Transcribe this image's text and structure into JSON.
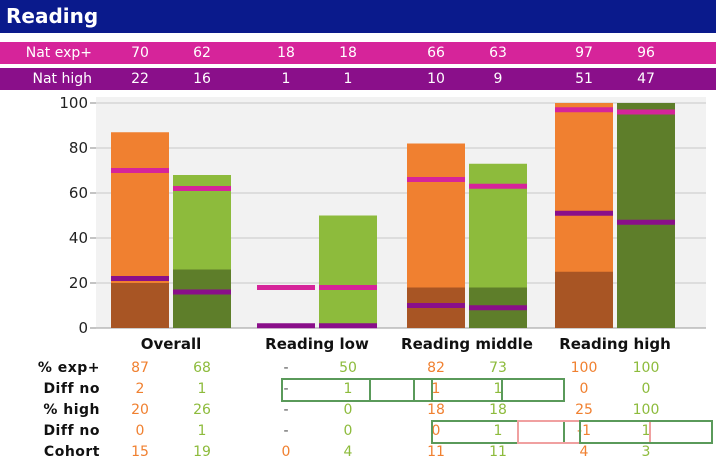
{
  "title": "Reading",
  "nat_exp": {
    "label": "Nat exp+",
    "values": [
      "70",
      "62",
      "18",
      "18",
      "66",
      "63",
      "97",
      "96"
    ]
  },
  "nat_high": {
    "label": "Nat high",
    "values": [
      "22",
      "16",
      "1",
      "1",
      "10",
      "9",
      "51",
      "47"
    ]
  },
  "colors": {
    "orange_light": "#f08030",
    "orange_dark": "#a85524",
    "green_light": "#8dbb3c",
    "green_dark": "#5e7e2a",
    "marker_exp": "#d6249a",
    "marker_high": "#8a0f8a"
  },
  "chart_data": {
    "type": "bar",
    "categories": [
      "Overall",
      "Reading low",
      "Reading middle",
      "Reading high"
    ],
    "ylim": [
      0,
      100
    ],
    "yticks": [
      0,
      20,
      40,
      60,
      80,
      100
    ],
    "grid": true,
    "series": [
      {
        "pct_exp": [
          87,
          null,
          82,
          100
        ],
        "pct_high": [
          20,
          null,
          18,
          25
        ],
        "nat_exp": [
          70,
          18,
          66,
          97
        ],
        "nat_high": [
          22,
          1,
          10,
          51
        ]
      },
      {
        "pct_exp": [
          68,
          50,
          73,
          100
        ],
        "pct_high": [
          26,
          0,
          18,
          100
        ],
        "nat_exp": [
          62,
          18,
          63,
          96
        ],
        "nat_high": [
          16,
          1,
          9,
          47
        ]
      }
    ]
  },
  "stats": [
    {
      "label": "% exp+",
      "values": [
        "87",
        "68",
        "-",
        "50",
        "82",
        "73",
        "100",
        "100"
      ]
    },
    {
      "label": "Diff no",
      "values": [
        "2",
        "1",
        "-",
        "1",
        "1",
        "1",
        "0",
        "0"
      ]
    },
    {
      "label": "% high",
      "values": [
        "20",
        "26",
        "-",
        "0",
        "18",
        "18",
        "25",
        "100"
      ]
    },
    {
      "label": "Diff no",
      "values": [
        "0",
        "1",
        "-",
        "0",
        "0",
        "1",
        "-1",
        "1"
      ]
    },
    {
      "label": "Cohort",
      "values": [
        "15",
        "19",
        "0",
        "4",
        "11",
        "11",
        "4",
        "3"
      ]
    }
  ]
}
